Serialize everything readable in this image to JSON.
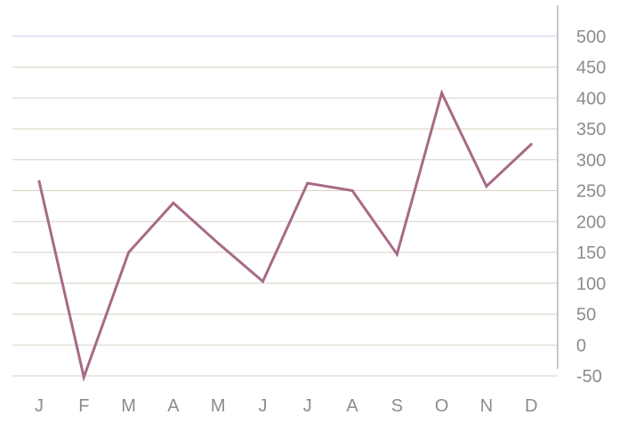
{
  "chart_data": {
    "type": "line",
    "title": "",
    "xlabel": "",
    "ylabel": "",
    "categories": [
      "J",
      "F",
      "M",
      "A",
      "M",
      "J",
      "J",
      "A",
      "S",
      "O",
      "N",
      "D"
    ],
    "series": [
      {
        "values": [
          265,
          -52,
          150,
          230,
          165,
          103,
          262,
          250,
          147,
          408,
          257,
          325
        ]
      }
    ],
    "ylim": [
      -50,
      550
    ],
    "yticks": [
      500,
      450,
      400,
      350,
      300,
      250,
      200,
      150,
      100,
      50,
      0,
      -50
    ],
    "y_axis_position": "right",
    "grid": true,
    "legend": "none",
    "colors": {
      "line": "#a86a88",
      "grid": "#d8d2c2",
      "grid_top": "#c9c9e6",
      "axis": "#c8c8c8",
      "tick_text": "#8c8c8c"
    }
  }
}
